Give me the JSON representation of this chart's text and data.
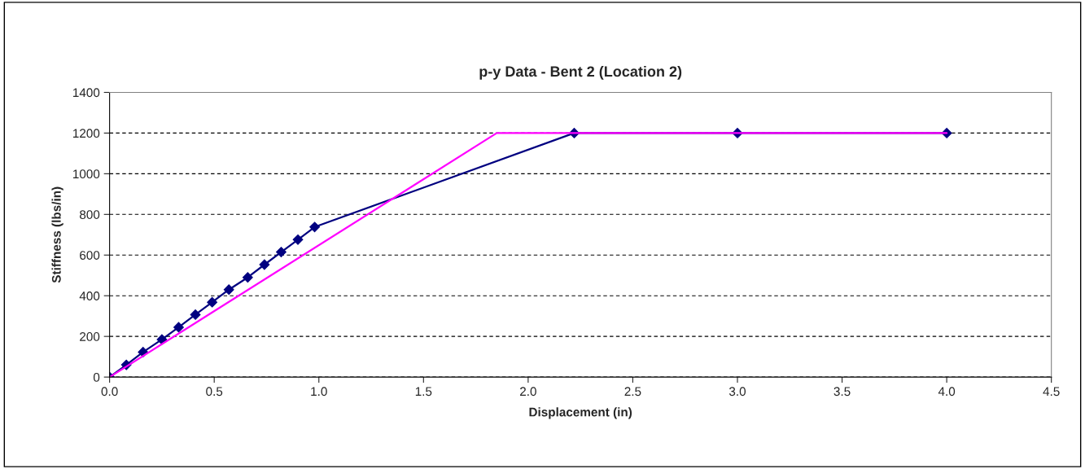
{
  "chart_data": {
    "type": "line",
    "title": "p-y Data - Bent 2 (Location 2)",
    "xlabel": "Displacement (in)",
    "ylabel": "Stiffness (lbs/in)",
    "series": [
      {
        "color": "#000080",
        "marker": "diamond",
        "x": [
          0,
          0.08,
          0.16,
          0.25,
          0.33,
          0.41,
          0.49,
          0.57,
          0.66,
          0.74,
          0.82,
          0.9,
          0.98,
          2.22,
          3.0,
          4.0
        ],
        "values": [
          0,
          60,
          123,
          185,
          245,
          307,
          368,
          430,
          490,
          553,
          615,
          676,
          738,
          1200,
          1200,
          1200
        ]
      },
      {
        "color": "#ff00ff",
        "marker": "none",
        "x": [
          0,
          1.85,
          4.0
        ],
        "values": [
          0,
          1200,
          1200
        ]
      }
    ],
    "xlim": [
      0,
      4.5
    ],
    "xticks": [
      {
        "value": 0,
        "label": "0.0"
      },
      {
        "value": 0.5,
        "label": "0.5"
      },
      {
        "value": 1,
        "label": "1.0"
      },
      {
        "value": 1.5,
        "label": "1.5"
      },
      {
        "value": 2,
        "label": "2.0"
      },
      {
        "value": 2.5,
        "label": "2.5"
      },
      {
        "value": 3,
        "label": "3.0"
      },
      {
        "value": 3.5,
        "label": "3.5"
      },
      {
        "value": 4,
        "label": "4.0"
      },
      {
        "value": 4.5,
        "label": "4.5"
      }
    ],
    "ylim": [
      0,
      1400
    ],
    "yticks": [
      0,
      200,
      400,
      600,
      800,
      1000,
      1200,
      1400
    ],
    "grid": "y",
    "legend": false
  }
}
